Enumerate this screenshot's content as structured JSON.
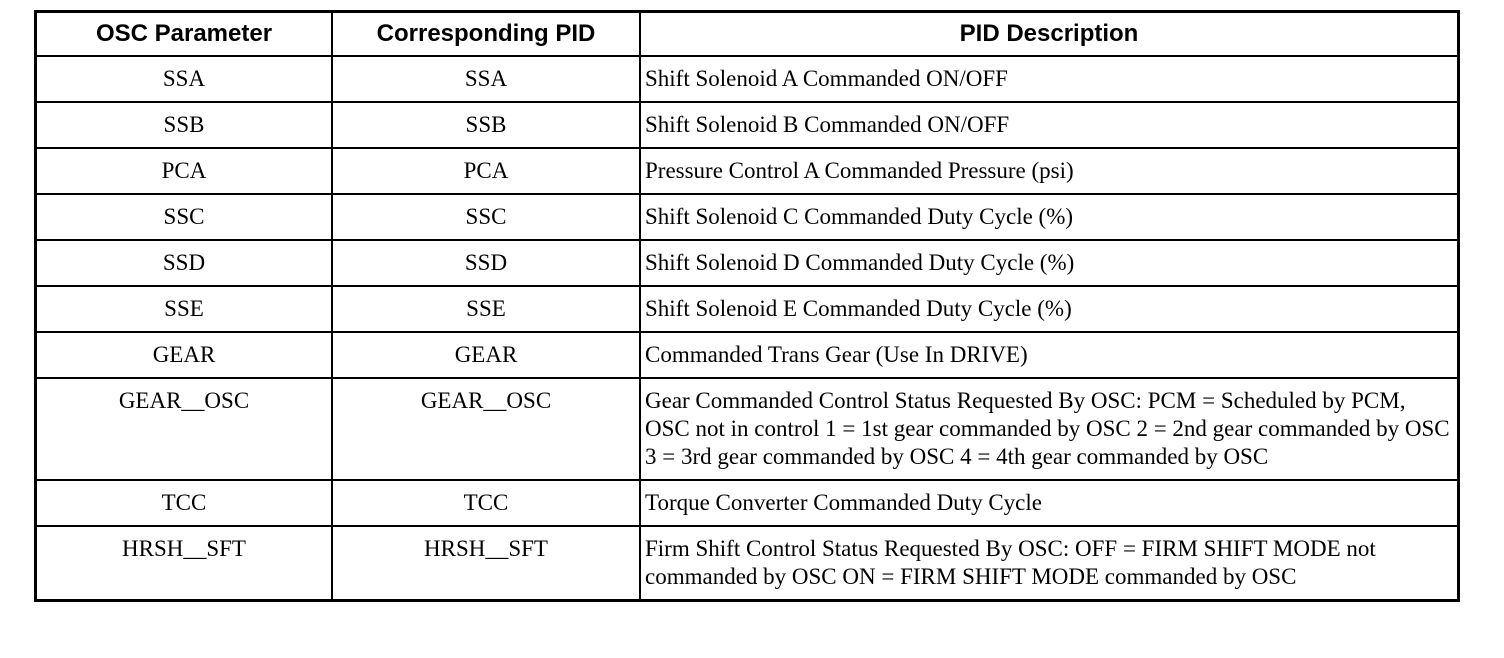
{
  "table": {
    "headers": [
      {
        "label": "OSC Parameter"
      },
      {
        "label": "Corresponding PID"
      },
      {
        "label": "PID Description"
      }
    ],
    "rows": [
      {
        "osc": "SSA",
        "pid": "SSA",
        "description": "Shift Solenoid A Commanded ON/OFF"
      },
      {
        "osc": "SSB",
        "pid": "SSB",
        "description": "Shift Solenoid B Commanded ON/OFF"
      },
      {
        "osc": "PCA",
        "pid": "PCA",
        "description": "Pressure Control A Commanded Pressure (psi)"
      },
      {
        "osc": "SSC",
        "pid": "SSC",
        "description": "Shift Solenoid C Commanded Duty Cycle (%)"
      },
      {
        "osc": "SSD",
        "pid": "SSD",
        "description": "Shift Solenoid D Commanded Duty Cycle (%)"
      },
      {
        "osc": "SSE",
        "pid": "SSE",
        "description": "Shift Solenoid E Commanded Duty Cycle (%)"
      },
      {
        "osc": "GEAR",
        "pid": "GEAR",
        "description": "Commanded Trans Gear (Use In DRIVE)"
      },
      {
        "osc": "GEAR__OSC",
        "pid": "GEAR__OSC",
        "description": "Gear Commanded Control Status Requested By OSC: PCM = Scheduled by PCM, OSC not in control 1 = 1st gear commanded by OSC 2 = 2nd gear commanded by OSC 3 = 3rd gear commanded by OSC 4 = 4th gear commanded by OSC"
      },
      {
        "osc": "TCC",
        "pid": "TCC",
        "description": "Torque Converter Commanded Duty Cycle"
      },
      {
        "osc": "HRSH__SFT",
        "pid": "HRSH__SFT",
        "description": "Firm Shift Control Status Requested By OSC: OFF = FIRM SHIFT MODE not commanded by OSC ON = FIRM SHIFT MODE commanded by OSC"
      }
    ]
  }
}
